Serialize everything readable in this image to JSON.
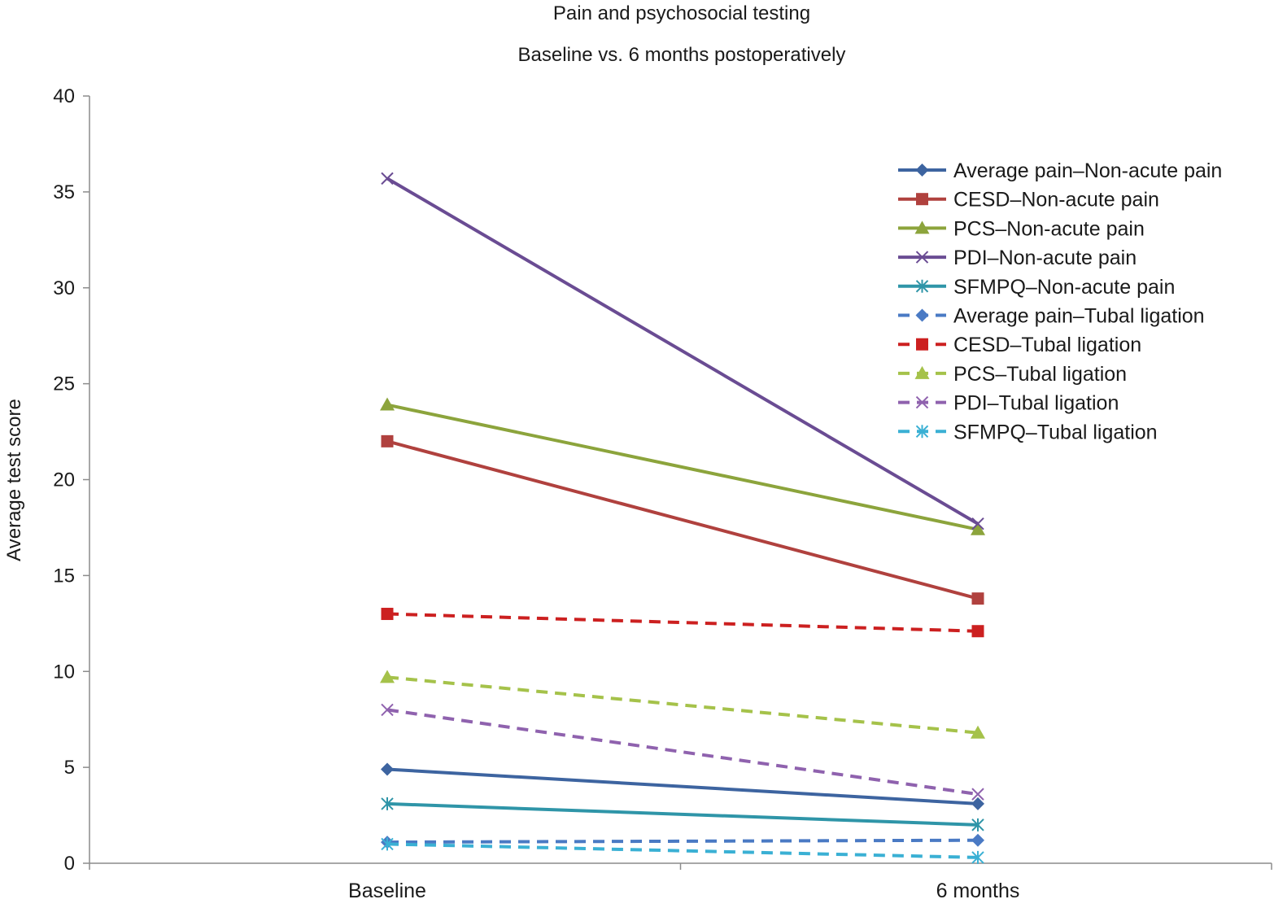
{
  "chart_data": {
    "type": "line",
    "title": "Pain and psychosocial testing",
    "subtitle": "Baseline vs. 6 months postoperatively",
    "xlabel": "",
    "ylabel": "Average test score",
    "categories": [
      "Baseline",
      "6 months"
    ],
    "ylim": [
      0,
      40
    ],
    "yticks": [
      0,
      5,
      10,
      15,
      20,
      25,
      30,
      35,
      40
    ],
    "grid": false,
    "legend_position": "right",
    "series": [
      {
        "name": "Average pain–Non-acute pain",
        "values": [
          4.9,
          3.1
        ],
        "color": "#3d64a0",
        "dash": false,
        "marker": "diamond"
      },
      {
        "name": "CESD–Non-acute pain",
        "values": [
          22.0,
          13.8
        ],
        "color": "#b0413e",
        "dash": false,
        "marker": "square"
      },
      {
        "name": "PCS–Non-acute pain",
        "values": [
          23.9,
          17.4
        ],
        "color": "#8ca43c",
        "dash": false,
        "marker": "triangle"
      },
      {
        "name": "PDI–Non-acute pain",
        "values": [
          35.7,
          17.7
        ],
        "color": "#6a4c93",
        "dash": false,
        "marker": "x"
      },
      {
        "name": "SFMPQ–Non-acute pain",
        "values": [
          3.1,
          2.0
        ],
        "color": "#2f95a8",
        "dash": false,
        "marker": "star"
      },
      {
        "name": "Average pain–Tubal ligation",
        "values": [
          1.1,
          1.2
        ],
        "color": "#4a7ac4",
        "dash": true,
        "marker": "diamond"
      },
      {
        "name": "CESD–Tubal ligation",
        "values": [
          13.0,
          12.1
        ],
        "color": "#cc2020",
        "dash": true,
        "marker": "square"
      },
      {
        "name": "PCS–Tubal ligation",
        "values": [
          9.7,
          6.8
        ],
        "color": "#a5c24a",
        "dash": true,
        "marker": "triangle"
      },
      {
        "name": "PDI–Tubal ligation",
        "values": [
          8.0,
          3.6
        ],
        "color": "#8f62ae",
        "dash": true,
        "marker": "x"
      },
      {
        "name": "SFMPQ–Tubal ligation",
        "values": [
          1.0,
          0.3
        ],
        "color": "#3ab0d4",
        "dash": true,
        "marker": "star"
      }
    ]
  }
}
